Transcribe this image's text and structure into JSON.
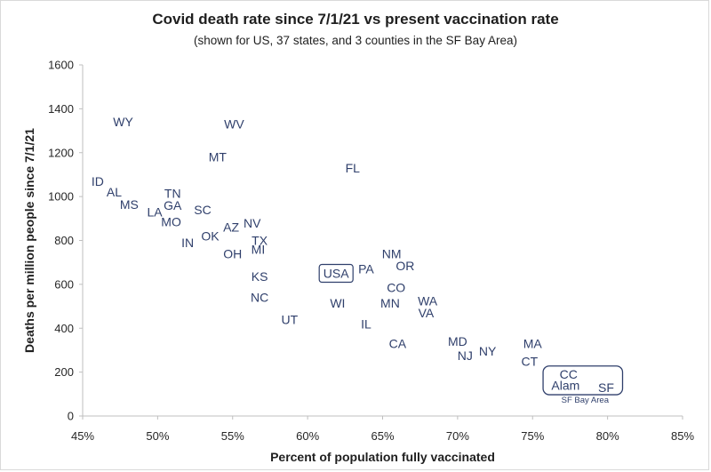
{
  "chart_data": {
    "type": "scatter",
    "title": "Covid death rate since 7/1/21 vs present vaccination rate",
    "subtitle": "(shown for US, 37 states, and 3 counties in the SF Bay Area)",
    "xlabel": "Percent of population fully vaccinated",
    "ylabel": "Deaths per million people since 7/1/21",
    "xlim": [
      45,
      85
    ],
    "ylim": [
      0,
      1600
    ],
    "x_ticks": [
      "45%",
      "50%",
      "55%",
      "60%",
      "65%",
      "70%",
      "75%",
      "80%",
      "85%"
    ],
    "y_ticks": [
      "0",
      "200",
      "400",
      "600",
      "800",
      "1000",
      "1200",
      "1400",
      "1600"
    ],
    "grid": false,
    "legend": "none",
    "label_color": "#2f3f6b",
    "points": [
      {
        "label": "WY",
        "x": 47.7,
        "y": 1340
      },
      {
        "label": "WV",
        "x": 55.1,
        "y": 1330
      },
      {
        "label": "MT",
        "x": 54.0,
        "y": 1180
      },
      {
        "label": "FL",
        "x": 63.0,
        "y": 1130
      },
      {
        "label": "ID",
        "x": 46.0,
        "y": 1070
      },
      {
        "label": "AL",
        "x": 47.1,
        "y": 1020
      },
      {
        "label": "TN",
        "x": 51.0,
        "y": 1015
      },
      {
        "label": "MS",
        "x": 48.1,
        "y": 965
      },
      {
        "label": "GA",
        "x": 51.0,
        "y": 960
      },
      {
        "label": "SC",
        "x": 53.0,
        "y": 940
      },
      {
        "label": "LA",
        "x": 49.8,
        "y": 930
      },
      {
        "label": "MO",
        "x": 50.9,
        "y": 885
      },
      {
        "label": "NV",
        "x": 56.3,
        "y": 880
      },
      {
        "label": "AZ",
        "x": 54.9,
        "y": 860
      },
      {
        "label": "OK",
        "x": 53.5,
        "y": 820
      },
      {
        "label": "TX",
        "x": 56.8,
        "y": 800
      },
      {
        "label": "IN",
        "x": 52.0,
        "y": 790
      },
      {
        "label": "MI",
        "x": 56.7,
        "y": 760
      },
      {
        "label": "OH",
        "x": 55.0,
        "y": 740
      },
      {
        "label": "NM",
        "x": 65.6,
        "y": 740
      },
      {
        "label": "OR",
        "x": 66.5,
        "y": 685
      },
      {
        "label": "PA",
        "x": 63.9,
        "y": 670
      },
      {
        "label": "USA",
        "x": 61.9,
        "y": 650,
        "boxed": true
      },
      {
        "label": "KS",
        "x": 56.8,
        "y": 635
      },
      {
        "label": "CO",
        "x": 65.9,
        "y": 585
      },
      {
        "label": "NC",
        "x": 56.8,
        "y": 540
      },
      {
        "label": "WA",
        "x": 68.0,
        "y": 525
      },
      {
        "label": "WI",
        "x": 62.0,
        "y": 515
      },
      {
        "label": "MN",
        "x": 65.5,
        "y": 515
      },
      {
        "label": "VA",
        "x": 67.9,
        "y": 470
      },
      {
        "label": "UT",
        "x": 58.8,
        "y": 440
      },
      {
        "label": "IL",
        "x": 63.9,
        "y": 420
      },
      {
        "label": "MD",
        "x": 70.0,
        "y": 340
      },
      {
        "label": "CA",
        "x": 66.0,
        "y": 330
      },
      {
        "label": "MA",
        "x": 75.0,
        "y": 330
      },
      {
        "label": "NY",
        "x": 72.0,
        "y": 295
      },
      {
        "label": "NJ",
        "x": 70.5,
        "y": 275
      },
      {
        "label": "CT",
        "x": 74.8,
        "y": 250
      },
      {
        "label": "CC",
        "x": 77.4,
        "y": 190
      },
      {
        "label": "Alam",
        "x": 77.2,
        "y": 140
      },
      {
        "label": "SF",
        "x": 79.9,
        "y": 130
      }
    ],
    "annotations": [
      {
        "text": "SF Bay Area",
        "x": 78.5,
        "y": 75,
        "group_box": {
          "x0": 75.7,
          "x1": 81.0,
          "y0": 97,
          "y1": 228
        }
      }
    ]
  }
}
